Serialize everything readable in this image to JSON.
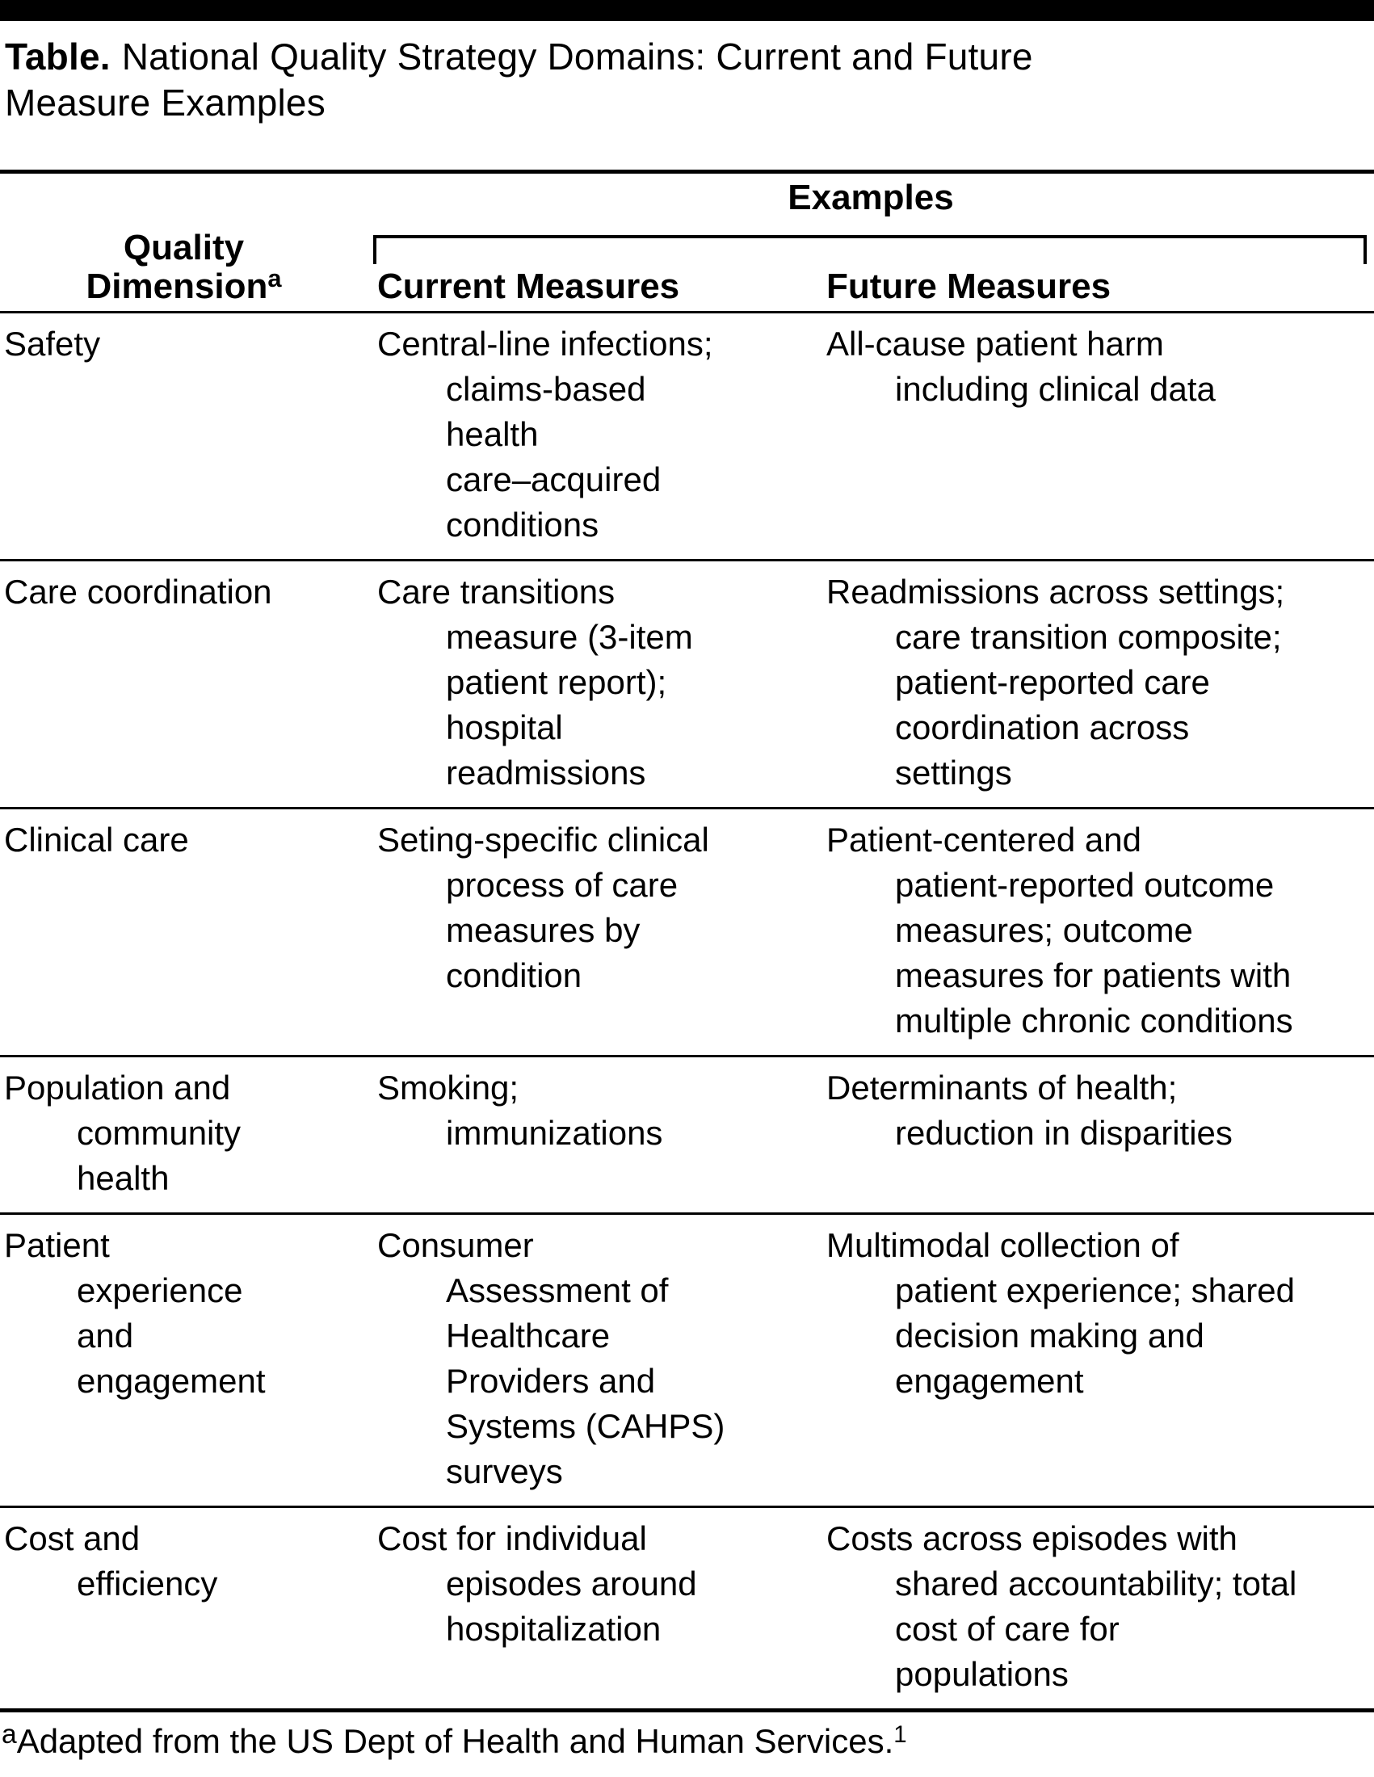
{
  "page": {
    "title_label": "Table.",
    "title_line1": "National Quality Strategy Domains: Current and Future",
    "title_line2": "Measure Examples"
  },
  "table": {
    "spanner": "Examples",
    "col_headers": {
      "dimension_line1": "Quality",
      "dimension_line2": "Dimension",
      "dimension_footnote_mark": "a",
      "current": "Current Measures",
      "future": "Future Measures"
    },
    "rows": [
      {
        "dimension": [
          "Safety"
        ],
        "current": [
          "Central-line infections;",
          "claims-based",
          "health",
          "care–acquired",
          "conditions"
        ],
        "future": [
          "All-cause patient harm",
          "including clinical data"
        ]
      },
      {
        "dimension": [
          "Care coordination"
        ],
        "current": [
          "Care transitions",
          "measure (3-item",
          "patient report);",
          "hospital",
          "readmissions"
        ],
        "future": [
          "Readmissions across settings;",
          "care transition composite;",
          "patient-reported care",
          "coordination across",
          "settings"
        ]
      },
      {
        "dimension": [
          "Clinical care"
        ],
        "current": [
          "Seting-specific clinical",
          "process of care",
          "measures by",
          "condition"
        ],
        "future": [
          "Patient-centered and",
          "patient-reported outcome",
          "measures; outcome",
          "measures for patients with",
          "multiple chronic conditions"
        ]
      },
      {
        "dimension": [
          "Population and",
          "community",
          "health"
        ],
        "current": [
          "Smoking;",
          "immunizations"
        ],
        "future": [
          "Determinants of health;",
          "reduction in disparities"
        ]
      },
      {
        "dimension": [
          "Patient",
          "experience",
          "and",
          "engagement"
        ],
        "current": [
          "Consumer",
          "Assessment of",
          "Healthcare",
          "Providers and",
          "Systems (CAHPS)",
          "surveys"
        ],
        "future": [
          "Multimodal collection of",
          "patient experience; shared",
          "decision making and",
          "engagement"
        ]
      },
      {
        "dimension": [
          "Cost and",
          "efficiency"
        ],
        "current": [
          "Cost for individual",
          "episodes around",
          "hospitalization"
        ],
        "future": [
          "Costs across episodes with",
          "shared accountability; total",
          "cost of care for",
          "populations"
        ]
      }
    ]
  },
  "footnote": {
    "mark": "a",
    "text": "Adapted from the US Dept of Health and Human Services.",
    "ref_mark": "1"
  },
  "colors": {
    "text": "#000000",
    "background": "#ffffff",
    "topbar": "#000000"
  }
}
